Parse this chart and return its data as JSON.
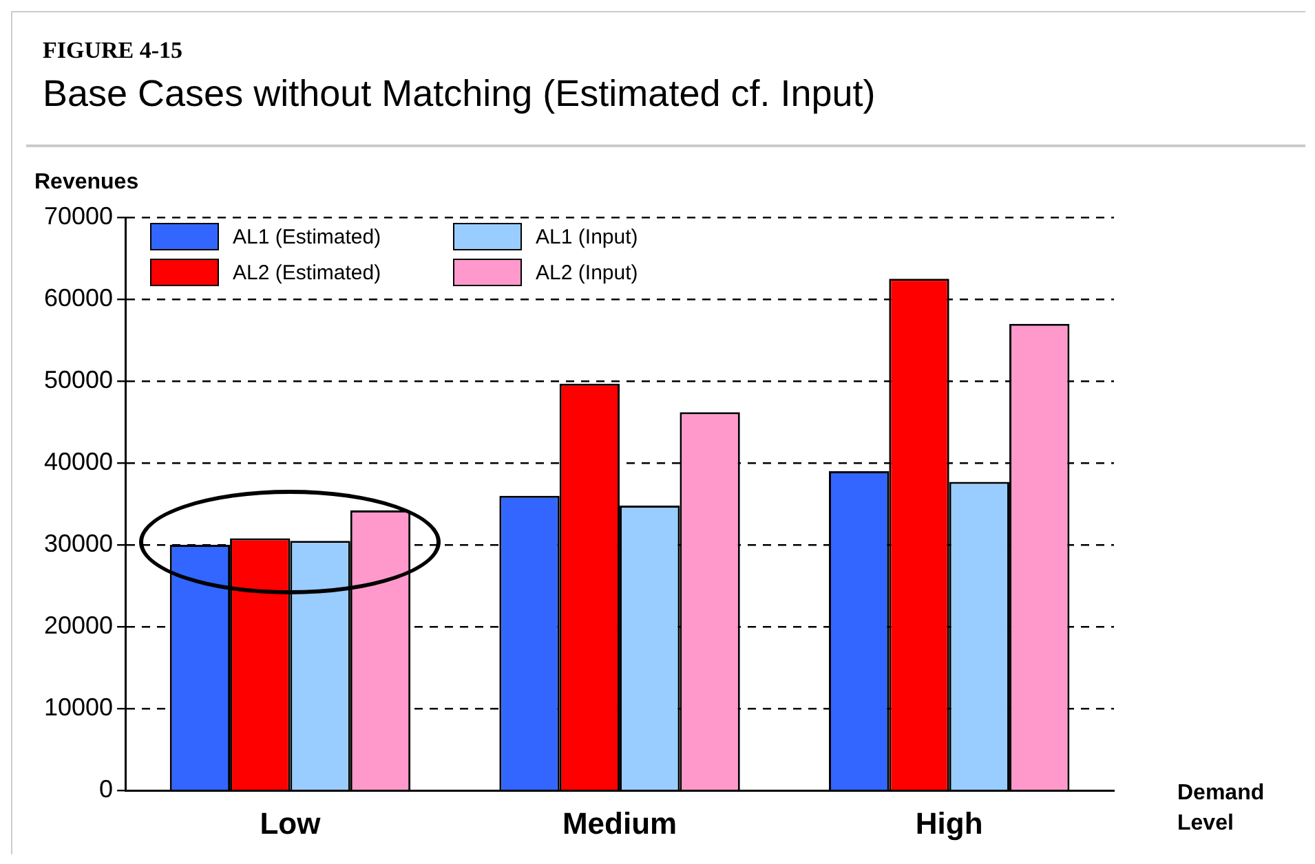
{
  "chart_data": {
    "type": "bar",
    "title": "Base Cases without Matching (Estimated cf. Input)",
    "annotations": [
      "FIGURE 4-15"
    ],
    "xlabel": "Demand Level",
    "ylabel": "Revenues",
    "categories": [
      "Low",
      "Medium",
      "High"
    ],
    "series": [
      {
        "name": "AL1 (Estimated)",
        "color": "#3366ff",
        "values": [
          30000,
          36000,
          39000
        ]
      },
      {
        "name": "AL2 (Estimated)",
        "color": "#ff0000",
        "values": [
          30800,
          49700,
          62500
        ]
      },
      {
        "name": "AL1 (Input)",
        "color": "#99ccff",
        "values": [
          30500,
          34800,
          37700
        ]
      },
      {
        "name": "AL2 (Input)",
        "color": "#ff99cc",
        "values": [
          34200,
          46200,
          57000
        ]
      }
    ],
    "ylim": [
      0,
      70000
    ],
    "yticks": [
      0,
      10000,
      20000,
      30000,
      40000,
      50000,
      60000,
      70000
    ],
    "grid": "y",
    "legend": "top left"
  }
}
